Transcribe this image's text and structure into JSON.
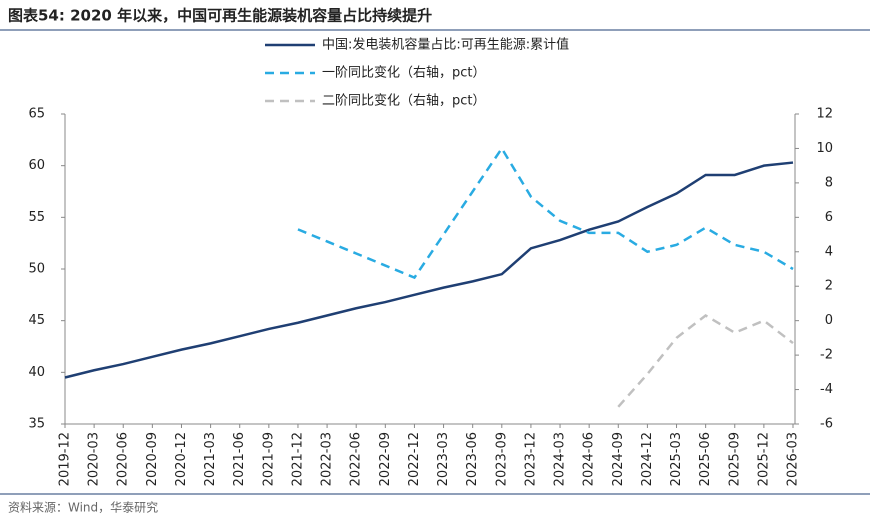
{
  "chart_data": {
    "type": "line",
    "title": "图表54:  2020 年以来，中国可再生能源装机容量占比持续提升",
    "source": "资料来源：Wind，华泰研究",
    "categories": [
      "2019-12",
      "2020-03",
      "2020-06",
      "2020-09",
      "2020-12",
      "2021-03",
      "2021-06",
      "2021-09",
      "2021-12",
      "2022-03",
      "2022-06",
      "2022-09",
      "2022-12",
      "2023-03",
      "2023-06",
      "2023-09",
      "2023-12",
      "2024-03",
      "2024-06",
      "2024-09",
      "2024-12",
      "2025-03",
      "2025-06",
      "2025-09",
      "2025-12",
      "2026-03"
    ],
    "series": [
      {
        "name": "中国:发电装机容量占比:可再生能源:累计值",
        "color": "#1f3f73",
        "dash": false,
        "values": [
          39.5,
          40.2,
          40.8,
          41.5,
          42.2,
          42.8,
          43.5,
          44.2,
          44.8,
          45.5,
          46.2,
          46.8,
          47.5,
          48.2,
          48.8,
          49.5,
          52.0,
          52.8,
          53.8,
          54.6,
          56.0,
          57.3,
          59.1,
          59.1,
          60.0,
          60.3
        ]
      },
      {
        "name": "一阶同比变化（右轴，pct）",
        "color": "#29abe2",
        "dash": true,
        "axis": "y2",
        "values": [
          null,
          null,
          null,
          null,
          null,
          null,
          null,
          null,
          5.3,
          4.6,
          3.9,
          3.2,
          2.5,
          5.0,
          7.5,
          10.0,
          7.2,
          5.8,
          5.1,
          5.1,
          4.0,
          4.4,
          5.4,
          4.4,
          4.0,
          3.0
        ]
      },
      {
        "name": "二阶同比变化（右轴，pct）",
        "color": "#c0c0c0",
        "dash": true,
        "axis": "y2",
        "values": [
          null,
          null,
          null,
          null,
          null,
          null,
          null,
          null,
          null,
          null,
          null,
          null,
          null,
          null,
          null,
          null,
          null,
          null,
          null,
          -5.0,
          -3.1,
          -1.0,
          0.3,
          -0.7,
          0.0,
          -1.3
        ]
      }
    ],
    "ylim": [
      35,
      65
    ],
    "yticks": [
      35,
      40,
      45,
      50,
      55,
      60,
      65
    ],
    "y2lim": [
      -6,
      12
    ],
    "y2ticks": [
      -6,
      -4,
      -2,
      0,
      2,
      4,
      6,
      8,
      10,
      12
    ]
  }
}
